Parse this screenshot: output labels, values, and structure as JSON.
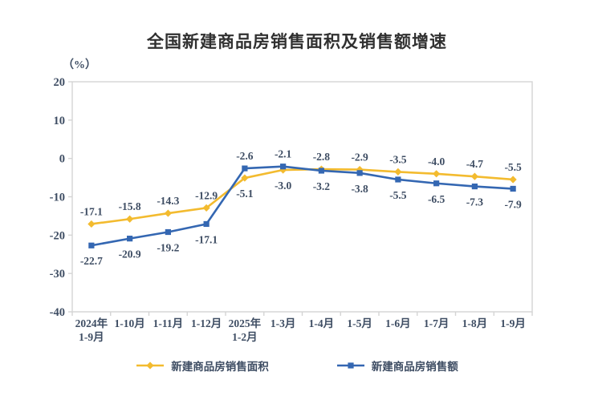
{
  "chart_data": {
    "type": "line",
    "title": "全国新建商品房销售面积及销售额增速",
    "unit_label": "（%）",
    "categories": [
      [
        "2024年",
        "1-9月"
      ],
      [
        "1-10月"
      ],
      [
        "1-11月"
      ],
      [
        "1-12月"
      ],
      [
        "2025年",
        "1-2月"
      ],
      [
        "1-3月"
      ],
      [
        "1-4月"
      ],
      [
        "1-5月"
      ],
      [
        "1-6月"
      ],
      [
        "1-7月"
      ],
      [
        "1-8月"
      ],
      [
        "1-9月"
      ]
    ],
    "ylim": [
      -40,
      20
    ],
    "yticks": [
      20,
      10,
      0,
      -10,
      -20,
      -30,
      -40
    ],
    "grid": false,
    "legend_position": "bottom",
    "series": [
      {
        "name": "新建商品房销售面积",
        "color": "#F3BB2F",
        "marker": "diamond",
        "values": [
          -17.1,
          -15.8,
          -14.3,
          -12.9,
          -5.1,
          -3.0,
          -2.8,
          -2.9,
          -3.5,
          -4.0,
          -4.7,
          -5.5
        ],
        "label_side": [
          "above",
          "above",
          "above",
          "above",
          "below",
          "below",
          "above",
          "above",
          "above",
          "above",
          "above",
          "above"
        ]
      },
      {
        "name": "新建商品房销售额",
        "color": "#3467B2",
        "marker": "square",
        "values": [
          -22.7,
          -20.9,
          -19.2,
          -17.1,
          -2.6,
          -2.1,
          -3.2,
          -3.8,
          -5.5,
          -6.5,
          -7.3,
          -7.9
        ],
        "label_side": [
          "below",
          "below",
          "below",
          "below",
          "above",
          "above",
          "below",
          "below",
          "below",
          "below",
          "below",
          "below"
        ]
      }
    ],
    "colors": {
      "axis_line": "#D4D4D4",
      "text": "#3E4D63",
      "title_text": "#303030"
    }
  }
}
